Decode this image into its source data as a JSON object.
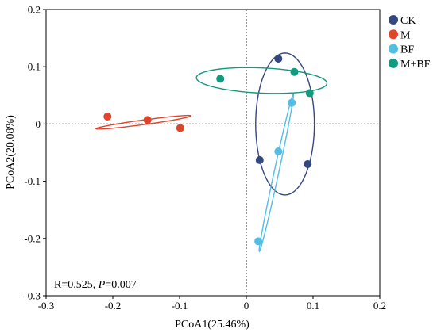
{
  "chart_data": {
    "type": "scatter",
    "xlabel": "PCoA1(25.46%)",
    "ylabel": "PCoA2(20.08%)",
    "xlim": [
      -0.3,
      0.2
    ],
    "ylim": [
      -0.3,
      0.2
    ],
    "xticks": [
      "-0.3",
      "-0.2",
      "-0.1",
      "0",
      "0.1",
      "0.2"
    ],
    "yticks": [
      "-0.3",
      "-0.2",
      "-0.1",
      "0",
      "0.1",
      "0.2"
    ],
    "reference_lines": {
      "x": 0,
      "y": 0,
      "style": "dotted"
    },
    "legend_position": "top-right",
    "annotation": {
      "r_text": "R=0.525, ",
      "p_label": "P",
      "p_value": "=0.007"
    },
    "series": [
      {
        "name": "CK",
        "color": "#34477f",
        "points": [
          [
            0.048,
            0.114
          ],
          [
            0.02,
            -0.063
          ],
          [
            0.092,
            -0.07
          ]
        ],
        "ellipse": {
          "center": [
            0.058,
            0.0
          ],
          "rx": 0.044,
          "ry": 0.124,
          "angle": 0
        }
      },
      {
        "name": "M",
        "color": "#e0442b",
        "points": [
          [
            -0.208,
            0.013
          ],
          [
            -0.148,
            0.007
          ],
          [
            -0.099,
            -0.007
          ]
        ],
        "ellipse": {
          "center": [
            -0.154,
            0.003
          ],
          "rx": 0.072,
          "ry": 0.004,
          "angle": 9
        }
      },
      {
        "name": "BF",
        "color": "#54bde3",
        "points": [
          [
            0.068,
            0.037
          ],
          [
            0.048,
            -0.048
          ],
          [
            0.018,
            -0.205
          ]
        ],
        "ellipse": {
          "center": [
            0.045,
            -0.085
          ],
          "rx": 0.14,
          "ry": 0.0035,
          "angle": 79.5
        }
      },
      {
        "name": "M+BF",
        "color": "#109a7e",
        "points": [
          [
            -0.039,
            0.079
          ],
          [
            0.072,
            0.091
          ],
          [
            0.095,
            0.054
          ]
        ],
        "ellipse": {
          "center": [
            0.023,
            0.076
          ],
          "rx": 0.098,
          "ry": 0.022,
          "angle": -3
        }
      }
    ]
  }
}
